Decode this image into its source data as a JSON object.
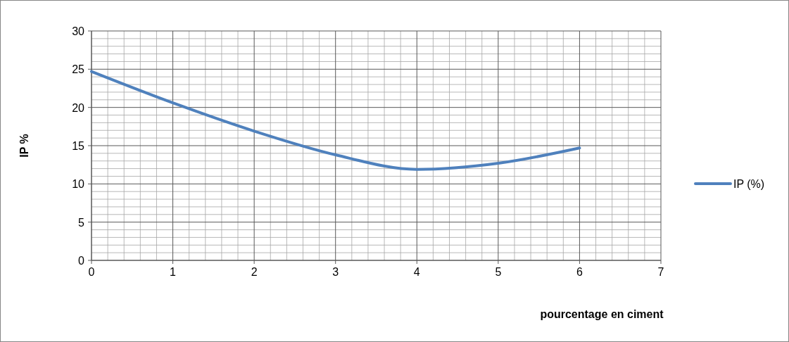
{
  "chart_data": {
    "type": "line",
    "xlabel": "pourcentage en ciment",
    "ylabel": "IP %",
    "x": [
      0,
      1,
      2,
      3,
      4,
      5,
      6
    ],
    "series": [
      {
        "name": "IP (%)",
        "color": "#4f81bd",
        "values": [
          24.7,
          20.6,
          16.9,
          13.8,
          11.9,
          12.7,
          14.7
        ]
      }
    ],
    "xlim": [
      0,
      7
    ],
    "xticks": [
      0,
      1,
      2,
      3,
      4,
      5,
      6,
      7
    ],
    "ylim": [
      0,
      30
    ],
    "yticks": [
      0,
      5,
      10,
      15,
      20,
      25,
      30
    ],
    "grid": true,
    "legend": "right",
    "marker": "none",
    "line_style": "solid"
  }
}
